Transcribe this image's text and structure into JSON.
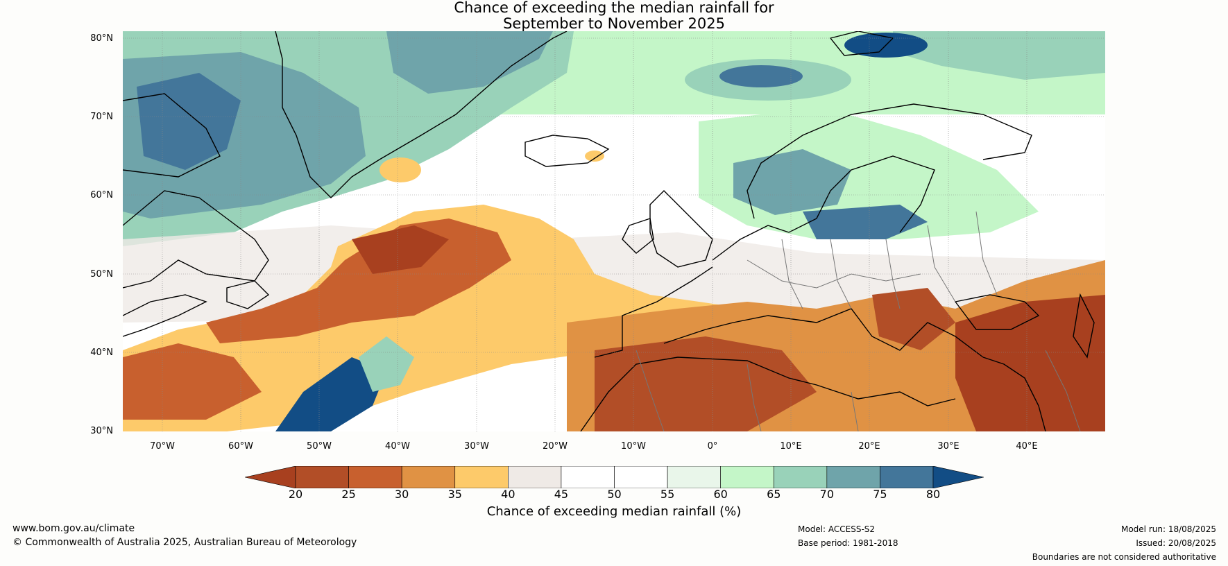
{
  "title": {
    "line1": "Chance of exceeding the median rainfall for",
    "line2": "September to November 2025"
  },
  "map": {
    "region": "North Atlantic and Europe",
    "lat_labels": [
      "80°N",
      "70°N",
      "60°N",
      "50°N",
      "40°N",
      "30°N"
    ],
    "lon_labels": [
      "70°W",
      "60°W",
      "50°W",
      "40°W",
      "30°W",
      "20°W",
      "10°W",
      "0°",
      "10°E",
      "20°E",
      "30°E",
      "40°E"
    ],
    "lat_range": [
      30,
      81
    ],
    "lon_range": [
      -75,
      50
    ],
    "grid": true
  },
  "colorbar": {
    "ticks": [
      "20",
      "25",
      "30",
      "35",
      "40",
      "45",
      "50",
      "55",
      "60",
      "65",
      "70",
      "75",
      "80"
    ],
    "colors": [
      "#a8401f",
      "#b24e27",
      "#c8602e",
      "#e09244",
      "#fdca6a",
      "#efeae6",
      "#ffffff",
      "#ffffff",
      "#e9f6ea",
      "#c4f6c8",
      "#99d2b9",
      "#6fa4aa",
      "#43769a",
      "#124d85"
    ],
    "label": "Chance of exceeding median rainfall (%)"
  },
  "footer": {
    "website": "www.bom.gov.au/climate",
    "copyright": "© Commonwealth of Australia 2025, Australian Bureau of Meteorology",
    "model": "Model: ACCESS-S2",
    "base_period": "Base period: 1981-2018",
    "model_run": "Model run: 18/08/2025",
    "issued": "Issued: 20/08/2025",
    "disclaimer": "Boundaries are not considered authoritative"
  }
}
